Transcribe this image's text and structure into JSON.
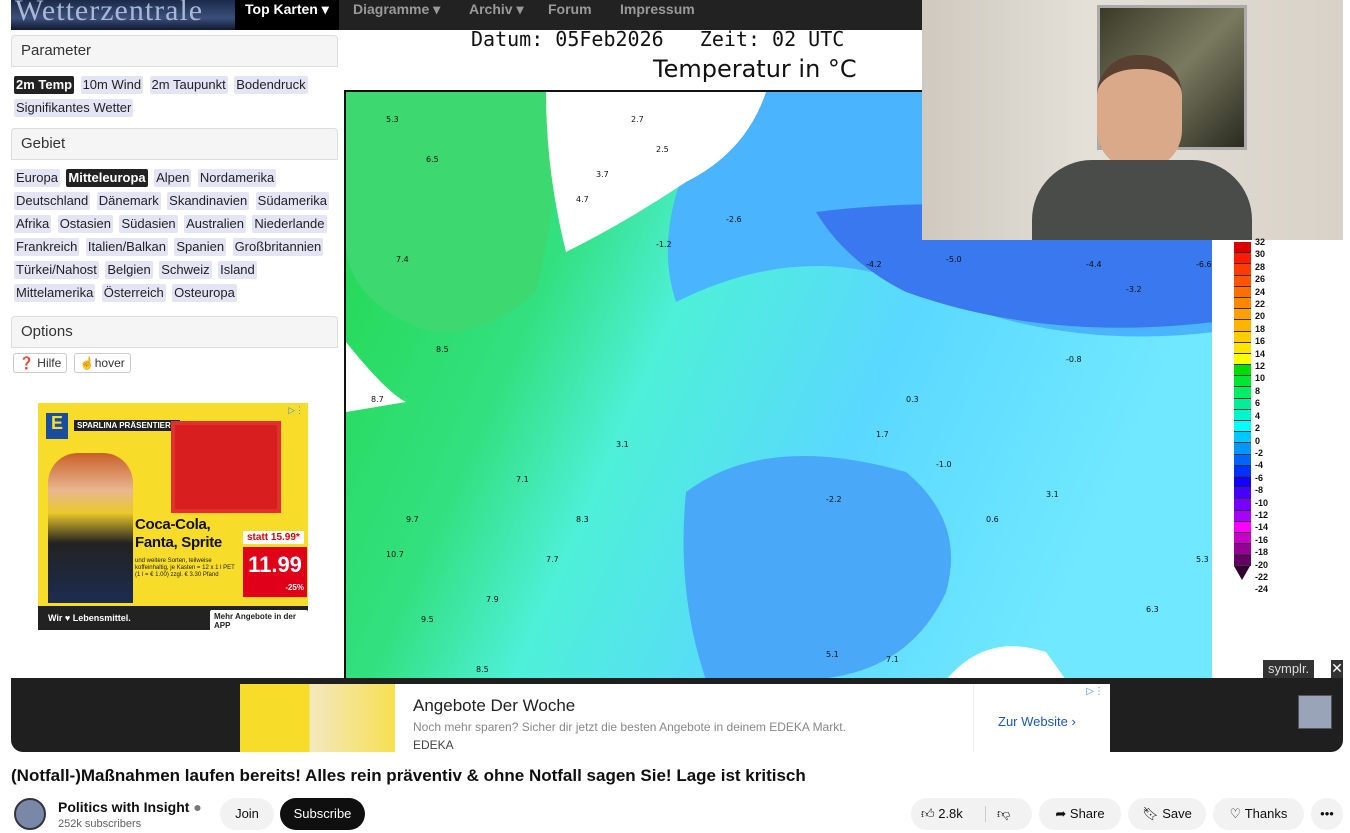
{
  "site": {
    "logo": "Wetterzentrale",
    "nav": [
      "Top Karten ▾",
      "Diagramme ▾",
      "Archiv ▾",
      "Forum",
      "Impressum"
    ]
  },
  "parameter": {
    "title": "Parameter",
    "items": [
      "2m Temp",
      "10m Wind",
      "2m Taupunkt",
      "Bodendruck",
      "Signifikantes Wetter"
    ],
    "selected": "2m Temp"
  },
  "gebiet": {
    "title": "Gebiet",
    "items": [
      "Europa",
      "Mitteleuropa",
      "Alpen",
      "Nordamerika",
      "Deutschland",
      "Dänemark",
      "Skandinavien",
      "Südamerika",
      "Afrika",
      "Ostasien",
      "Südasien",
      "Australien",
      "Niederlande",
      "Frankreich",
      "Italien/Balkan",
      "Spanien",
      "Großbritannien",
      "Türkei/Nahost",
      "Belgien",
      "Schweiz",
      "Island",
      "Mittelamerika",
      "Österreich",
      "Osteuropa"
    ],
    "selected": "Mitteleuropa"
  },
  "options": {
    "title": "Options",
    "hilfe": "Hilfe",
    "hover": "hover"
  },
  "ad_left": {
    "tag": "SPARLINA PRÄSENTIERT:",
    "headline": "Coca-Cola, Fanta, Sprite",
    "sub": "und weitere Sorten, teilweise koffeinhaltig, je Kasten = 12 x 1 l PET (1 l = € 1.00) zzgl. € 3.30 Pfand",
    "was": "statt 15.99*",
    "price": "11.99",
    "discount": "-25%",
    "slogan": "Wir ♥ Lebensmittel.",
    "cta": "Mehr Angebote in der APP",
    "brand": "EDEKA"
  },
  "map": {
    "datum": "Datum: 05Feb2026",
    "zeit": "Zeit: 02 UTC",
    "title": "Temperatur in °C",
    "samples": [
      [
        "5.3",
        40,
        30
      ],
      [
        "6.5",
        80,
        70
      ],
      [
        "7.4",
        50,
        170
      ],
      [
        "8.5",
        90,
        260
      ],
      [
        "8.7",
        25,
        310
      ],
      [
        "9.7",
        60,
        430
      ],
      [
        "10.7",
        40,
        465
      ],
      [
        "9.5",
        75,
        530
      ],
      [
        "7.9",
        140,
        510
      ],
      [
        "8.3",
        230,
        430
      ],
      [
        "7.7",
        200,
        470
      ],
      [
        "4.7",
        230,
        110
      ],
      [
        "2.7",
        285,
        30
      ],
      [
        "2.5",
        310,
        60
      ],
      [
        "3.7",
        250,
        85
      ],
      [
        "-1.2",
        310,
        155
      ],
      [
        "-2.6",
        380,
        130
      ],
      [
        "-4.2",
        520,
        175
      ],
      [
        "-5.0",
        600,
        170
      ],
      [
        "-4.4",
        740,
        175
      ],
      [
        "-6.6",
        860,
        175
      ],
      [
        "-3.2",
        780,
        200
      ],
      [
        "-0.8",
        720,
        270
      ],
      [
        "0.3",
        560,
        310
      ],
      [
        "1.7",
        530,
        345
      ],
      [
        "-1.0",
        590,
        375
      ],
      [
        "-2.2",
        480,
        410
      ],
      [
        "0.6",
        640,
        430
      ],
      [
        "3.1",
        700,
        405
      ],
      [
        "5.1",
        480,
        565
      ],
      [
        "7.1",
        540,
        570
      ],
      [
        "6.3",
        800,
        520
      ],
      [
        "5.3",
        860,
        470
      ],
      [
        "8.5",
        130,
        580
      ],
      [
        "3.1",
        270,
        355
      ],
      [
        "7.1",
        170,
        390
      ]
    ]
  },
  "colorbar": {
    "labels": [
      "32",
      "30",
      "28",
      "26",
      "24",
      "22",
      "20",
      "18",
      "16",
      "14",
      "12",
      "10",
      "8",
      "6",
      "4",
      "2",
      "0",
      "-2",
      "-4",
      "-6",
      "-8",
      "-10",
      "-12",
      "-14",
      "-16",
      "-18",
      "-20",
      "-22",
      "-24"
    ],
    "colors": [
      "#d80000",
      "#ff1a00",
      "#ff3c00",
      "#ff5500",
      "#ff6e00",
      "#ff8800",
      "#ffa000",
      "#ffb400",
      "#ffcc00",
      "#ffe400",
      "#ffff00",
      "#00dd00",
      "#00e633",
      "#00ee66",
      "#00f099",
      "#00f5cc",
      "#00ffff",
      "#00c8ff",
      "#0096ff",
      "#0064ff",
      "#0032ff",
      "#1400ff",
      "#4600ff",
      "#7800ff",
      "#aa00ff",
      "#ff00ff",
      "#c800c8",
      "#960096",
      "#640064"
    ]
  },
  "overlay": {
    "symplr": "symplr.",
    "close": "✕"
  },
  "ad_bottom": {
    "title": "Angebote Der Woche",
    "desc": "Noch mehr sparen? Sicher dir jetzt die besten Angebote in deinem EDEKA Markt.",
    "brand": "EDEKA",
    "cta": "Zur Website"
  },
  "video": {
    "title": "(Notfall-)Maßnahmen laufen bereits! Alles rein präventiv & ohne Notfall sagen Sie! Lage ist kritisch",
    "channel": "Politics with Insight",
    "subscribers": "252k subscribers",
    "join": "Join",
    "subscribe": "Subscribe",
    "likes": "2.8k",
    "share": "Share",
    "save": "Save",
    "thanks": "Thanks"
  }
}
